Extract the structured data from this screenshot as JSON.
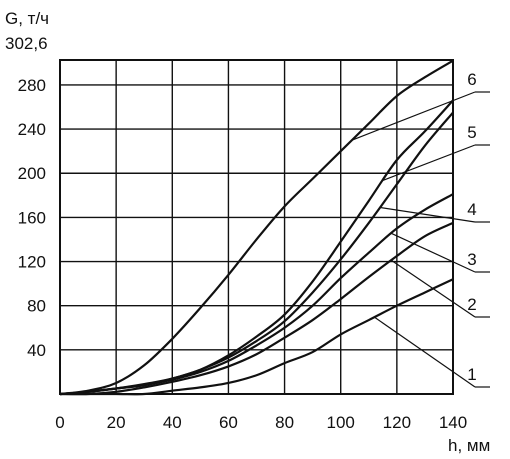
{
  "chart_data": {
    "type": "line",
    "ylabel": "G, т/ч",
    "xlabel": "h, мм",
    "xlim": [
      0,
      140
    ],
    "ylim": [
      0,
      302.6
    ],
    "x_ticks": [
      "0",
      "20",
      "40",
      "60",
      "80",
      "100",
      "120",
      "140"
    ],
    "y_ticks": [
      "40",
      "80",
      "120",
      "160",
      "200",
      "240",
      "280"
    ],
    "y_ticks_values": [
      40,
      80,
      120,
      160,
      200,
      240,
      280
    ],
    "y_max_label": "302,6",
    "grid": true,
    "series": [
      {
        "name": "1",
        "x": [
          0,
          10,
          20,
          30,
          40,
          50,
          60,
          70,
          80,
          90,
          100,
          110,
          120,
          130,
          140
        ],
        "y": [
          0,
          0,
          0,
          0,
          3,
          6,
          10,
          17,
          28,
          38,
          54,
          67,
          80,
          92,
          104
        ]
      },
      {
        "name": "2",
        "x": [
          0,
          10,
          20,
          30,
          40,
          50,
          60,
          70,
          80,
          90,
          100,
          110,
          120,
          130,
          140
        ],
        "y": [
          0,
          0,
          2,
          6,
          11,
          17,
          25,
          36,
          51,
          67,
          86,
          106,
          125,
          143,
          155
        ]
      },
      {
        "name": "3",
        "x": [
          0,
          10,
          20,
          30,
          40,
          50,
          60,
          70,
          80,
          90,
          100,
          110,
          120,
          130,
          140
        ],
        "y": [
          0,
          2,
          5,
          8,
          13,
          20,
          30,
          44,
          60,
          80,
          105,
          128,
          150,
          167,
          181
        ]
      },
      {
        "name": "4",
        "x": [
          0,
          10,
          20,
          30,
          40,
          50,
          60,
          70,
          80,
          90,
          100,
          110,
          120,
          130,
          140
        ],
        "y": [
          0,
          2,
          5,
          8,
          14,
          22,
          33,
          48,
          66,
          92,
          122,
          155,
          190,
          225,
          255
        ]
      },
      {
        "name": "5",
        "x": [
          0,
          10,
          20,
          30,
          40,
          50,
          60,
          70,
          80,
          90,
          100,
          110,
          120,
          130,
          140
        ],
        "y": [
          0,
          2,
          5,
          9,
          14,
          22,
          35,
          52,
          72,
          102,
          138,
          175,
          212,
          238,
          266
        ]
      },
      {
        "name": "6",
        "x": [
          0,
          10,
          20,
          30,
          40,
          50,
          60,
          70,
          80,
          90,
          100,
          110,
          120,
          130,
          140
        ],
        "y": [
          0,
          3,
          10,
          26,
          50,
          78,
          108,
          140,
          170,
          195,
          220,
          245,
          270,
          287,
          302
        ]
      }
    ],
    "label_order": [
      "6",
      "5",
      "4",
      "3",
      "2",
      "1"
    ]
  }
}
